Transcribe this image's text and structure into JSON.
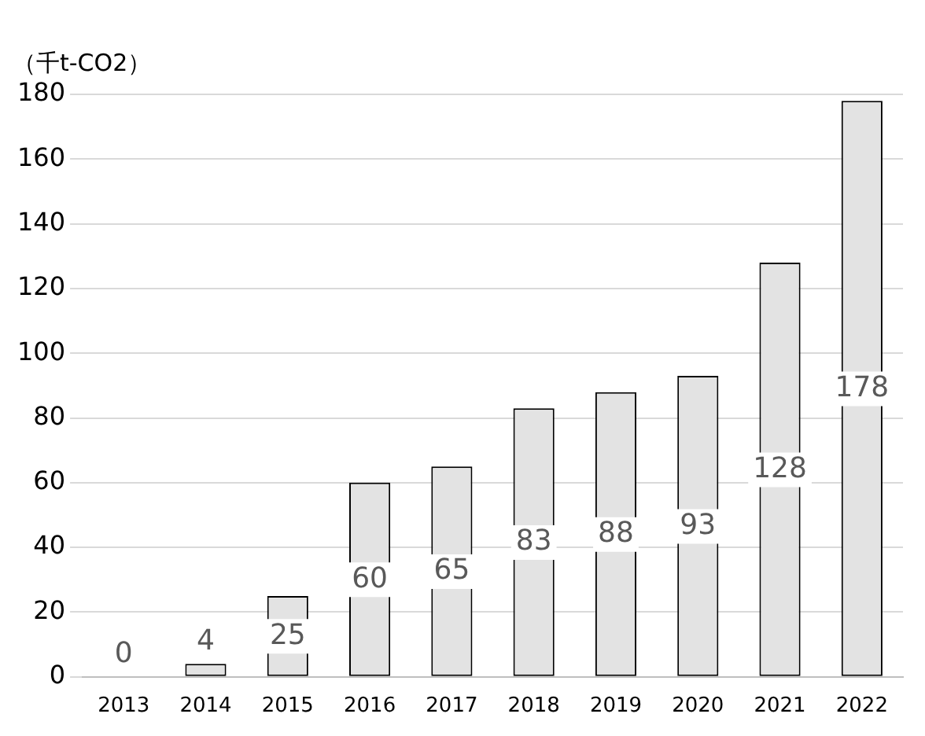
{
  "chart_data": {
    "type": "bar",
    "ylabel": "（千t-CO2）",
    "categories": [
      "2013",
      "2014",
      "2015",
      "2016",
      "2017",
      "2018",
      "2019",
      "2020",
      "2021",
      "2022"
    ],
    "values": [
      0,
      4,
      25,
      60,
      65,
      83,
      88,
      93,
      128,
      178
    ],
    "color": "#e3e3e3",
    "ylim": [
      0,
      180
    ],
    "yticks": [
      0,
      20,
      40,
      60,
      80,
      100,
      120,
      140,
      160,
      180
    ],
    "grid": "y",
    "data_labels": true
  }
}
